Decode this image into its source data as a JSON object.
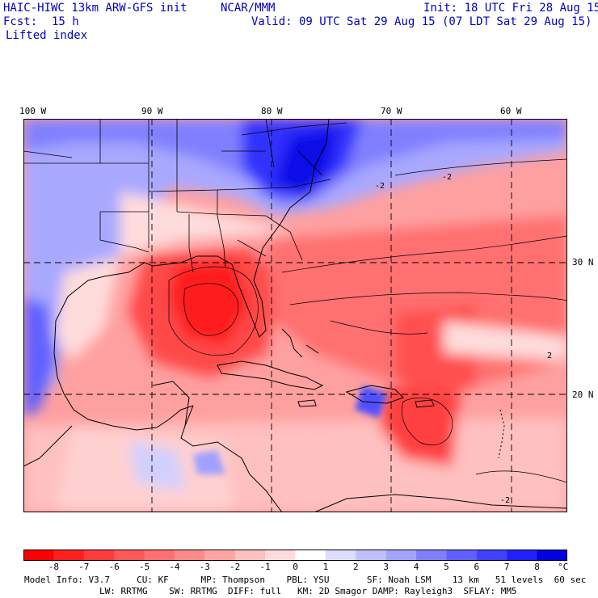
{
  "header": {
    "model": "HAIC-HIWC 13km ARW-GFS init",
    "center": "NCAR/MMM",
    "init": "Init: 18 UTC Fri 28 Aug 15",
    "fcst_label": "Fcst:",
    "fcst_value": "15 h",
    "valid": "Valid: 09 UTC Sat 29 Aug 15 (07 LDT Sat 29 Aug 15)",
    "field": "Lifted index"
  },
  "map": {
    "longitude_labels": [
      "100 W",
      "90 W",
      "80 W",
      "70 W",
      "60 W"
    ],
    "latitude_labels": [
      "30 N",
      "20 N"
    ],
    "contour_labels": [
      "-2",
      "-2",
      "-2",
      "2"
    ]
  },
  "colorbar": {
    "ticks": [
      "-8",
      "-7",
      "-6",
      "-5",
      "-4",
      "-3",
      "-2",
      "-1",
      "0",
      "1",
      "2",
      "3",
      "4",
      "5",
      "6",
      "7",
      "8"
    ],
    "unit": "°C",
    "colors": [
      "#ff0000",
      "#ff2020",
      "#ff3c3c",
      "#ff5858",
      "#ff7070",
      "#ff8a8a",
      "#ffa4a4",
      "#ffc0c0",
      "#ffdcdc",
      "#ffffff",
      "#dcdcff",
      "#c0c0ff",
      "#a4a4ff",
      "#8080ff",
      "#6060ff",
      "#4040ff",
      "#2020ff",
      "#0000e0"
    ]
  },
  "footer": {
    "line1": "Model Info: V3.7     CU: KF      MP: Thompson    PBL: YSU       SF: Noah LSM    13 km   51 levels  60 sec",
    "line2": "LW: RRTMG    SW: RRTMG  DIFF: full   KM: 2D Smagor DAMP: Rayleigh3  SFLAY: MM5"
  }
}
